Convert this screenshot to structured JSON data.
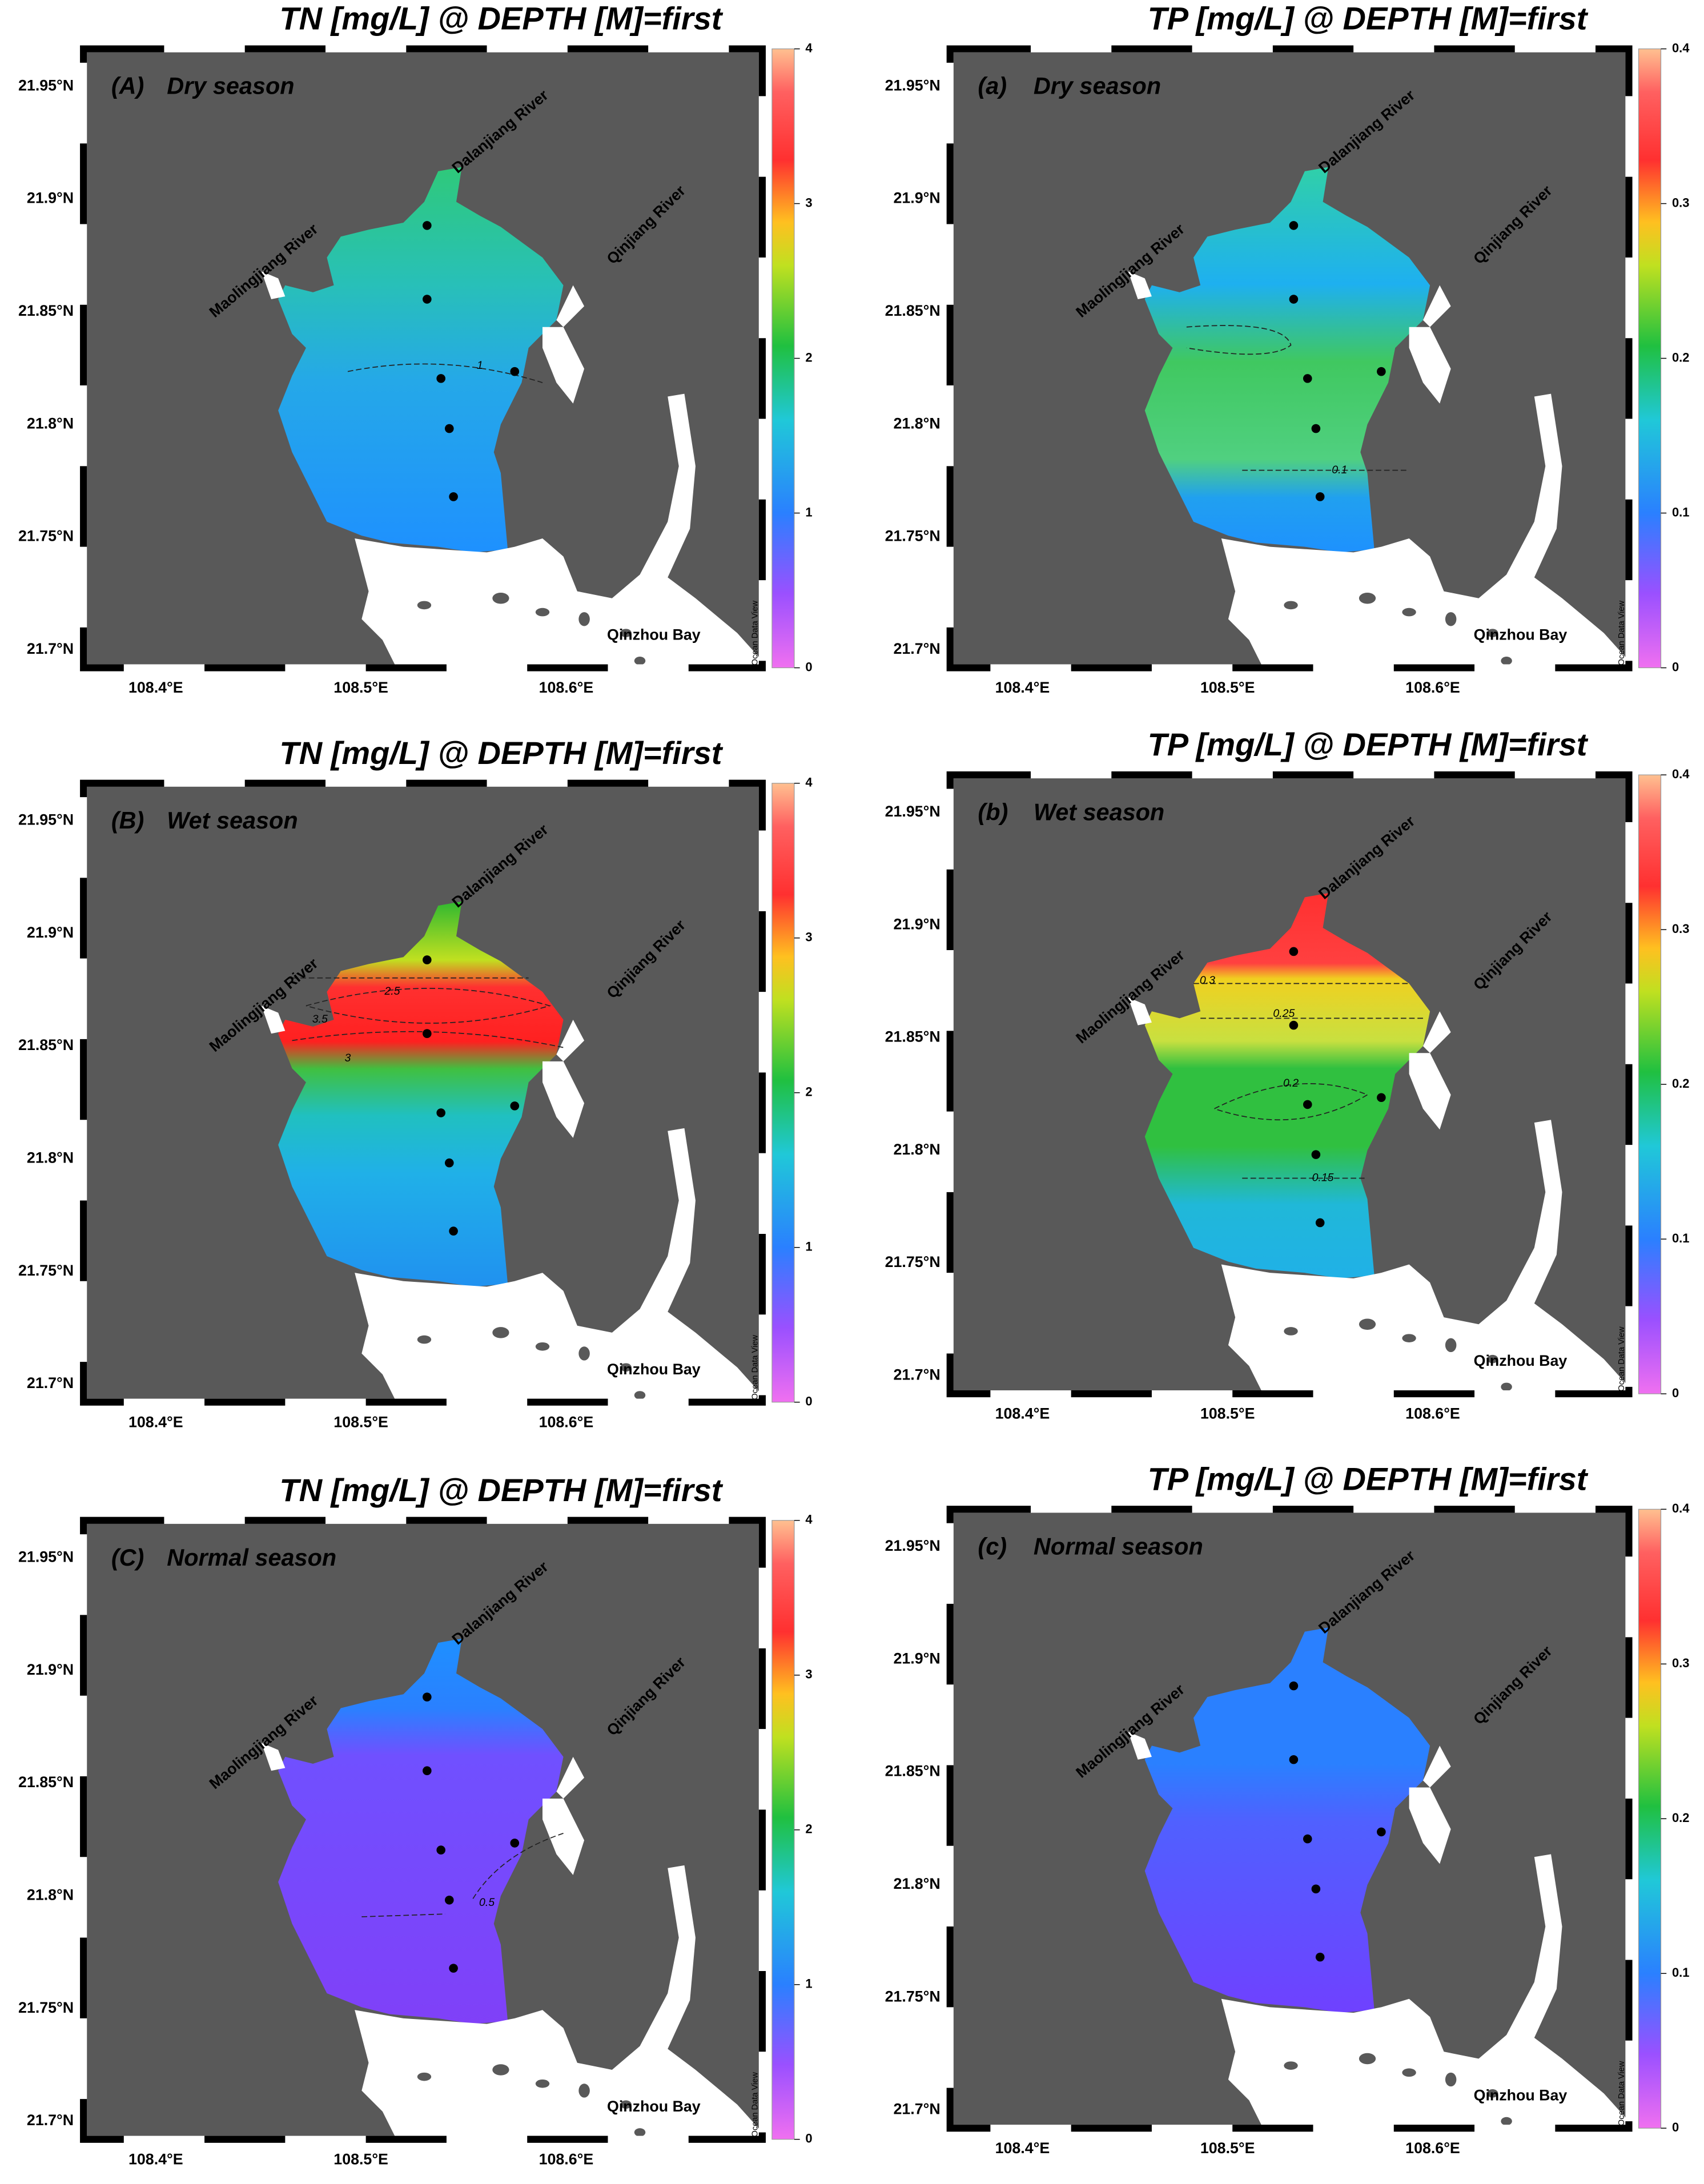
{
  "panels": [
    {
      "title": "TN [mg/L] @ DEPTH [M]=first",
      "label": "(A)",
      "season": "Dry season",
      "yticks": [
        "21.95°N",
        "21.9°N",
        "21.85°N",
        "21.8°N",
        "21.75°N",
        "21.7°N"
      ],
      "xticks": [
        "108.4°E",
        "108.5°E",
        "108.6°E"
      ],
      "colorbar_ticks": [
        0,
        1,
        2,
        3,
        4
      ],
      "rivers": [
        "Maolingjiang River",
        "Dalanjiang River",
        "Qinjiang River"
      ],
      "bay": "Qinzhou Bay",
      "contour_labels": [
        "1"
      ],
      "watermark": "Ocean Data View"
    },
    {
      "title": "TP [mg/L] @ DEPTH [M]=first",
      "label": "(a)",
      "season": "Dry season",
      "yticks": [
        "21.95°N",
        "21.9°N",
        "21.85°N",
        "21.8°N",
        "21.75°N",
        "21.7°N"
      ],
      "xticks": [
        "108.4°E",
        "108.5°E",
        "108.6°E"
      ],
      "colorbar_ticks": [
        0,
        0.1,
        0.2,
        0.3,
        0.4
      ],
      "rivers": [
        "Maolingjiang River",
        "Dalanjiang River",
        "Qinjiang River"
      ],
      "bay": "Qinzhou Bay",
      "contour_labels": [
        "0.1"
      ],
      "watermark": "Ocean Data View"
    },
    {
      "title": "TN [mg/L] @ DEPTH [M]=first",
      "label": "(B)",
      "season": "Wet season",
      "yticks": [
        "21.95°N",
        "21.9°N",
        "21.85°N",
        "21.8°N",
        "21.75°N",
        "21.7°N"
      ],
      "xticks": [
        "108.4°E",
        "108.5°E",
        "108.6°E"
      ],
      "colorbar_ticks": [
        0,
        1,
        2,
        3,
        4
      ],
      "rivers": [
        "Maolingjiang River",
        "Dalanjiang River",
        "Qinjiang River"
      ],
      "bay": "Qinzhou Bay",
      "contour_labels": [
        "2.5",
        "3.5",
        "3"
      ],
      "watermark": "Ocean Data View"
    },
    {
      "title": "TP [mg/L] @ DEPTH [M]=first",
      "label": "(b)",
      "season": "Wet season",
      "yticks": [
        "21.95°N",
        "21.9°N",
        "21.85°N",
        "21.8°N",
        "21.75°N",
        "21.7°N"
      ],
      "xticks": [
        "108.4°E",
        "108.5°E",
        "108.6°E"
      ],
      "colorbar_ticks": [
        0,
        0.1,
        0.2,
        0.3,
        0.4
      ],
      "rivers": [
        "Maolingjiang River",
        "Dalanjiang River",
        "Qinjiang River"
      ],
      "bay": "Qinzhou Bay",
      "contour_labels": [
        "0.3",
        "0.25",
        "0.2",
        "0.15"
      ],
      "watermark": "Ocean Data View"
    },
    {
      "title": "TN [mg/L] @ DEPTH [M]=first",
      "label": "(C)",
      "season": "Normal season",
      "yticks": [
        "21.95°N",
        "21.9°N",
        "21.85°N",
        "21.8°N",
        "21.75°N",
        "21.7°N"
      ],
      "xticks": [
        "108.4°E",
        "108.5°E",
        "108.6°E"
      ],
      "colorbar_ticks": [
        0,
        1,
        2,
        3,
        4
      ],
      "rivers": [
        "Maolingjiang River",
        "Dalanjiang River",
        "Qinjiang River"
      ],
      "bay": "Qinzhou Bay",
      "contour_labels": [
        "0.5"
      ],
      "watermark": "Ocean Data View"
    },
    {
      "title": "TP [mg/L] @ DEPTH [M]=first",
      "label": "(c)",
      "season": "Normal season",
      "yticks": [
        "21.95°N",
        "21.9°N",
        "21.85°N",
        "21.8°N",
        "21.75°N",
        "21.7°N"
      ],
      "xticks": [
        "108.4°E",
        "108.5°E",
        "108.6°E"
      ],
      "colorbar_ticks": [
        0,
        0.1,
        0.2,
        0.3,
        0.4
      ],
      "rivers": [
        "Maolingjiang River",
        "Dalanjiang River",
        "Qinjiang River"
      ],
      "bay": "Qinzhou Bay",
      "contour_labels": [],
      "watermark": "Ocean Data View"
    }
  ]
}
